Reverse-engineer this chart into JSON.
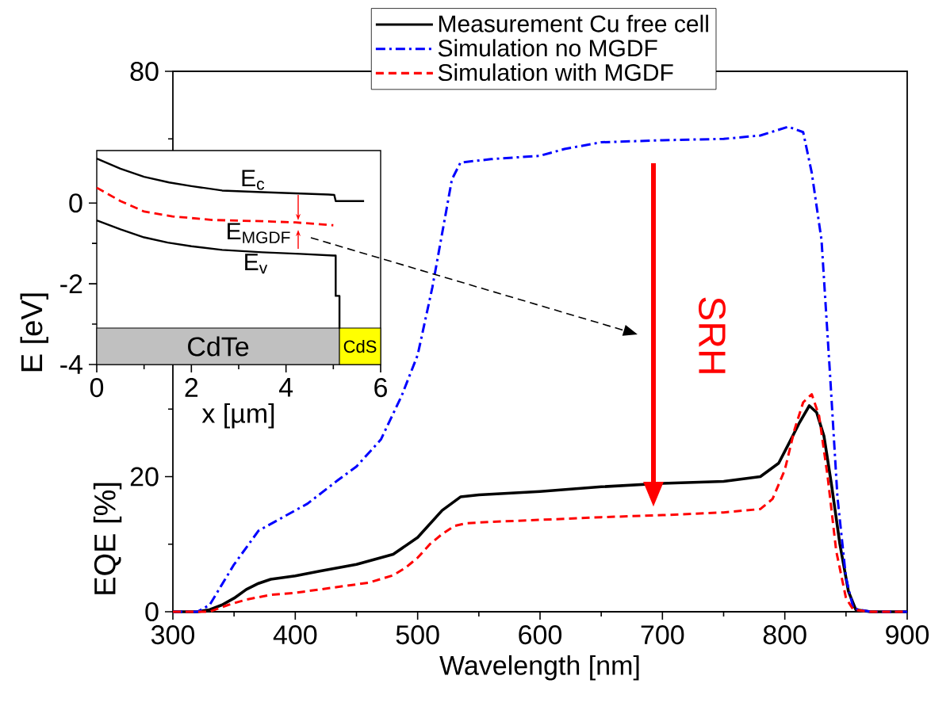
{
  "chart_data": [
    {
      "type": "line",
      "xlabel": "Wavelength [nm]",
      "ylabel": "EQE [%]",
      "xlim": [
        300,
        900
      ],
      "ylim": [
        0,
        80
      ],
      "xticks": [
        300,
        400,
        500,
        600,
        700,
        800,
        900
      ],
      "yticks": [
        0,
        20,
        {
          "value": 40,
          "label": null
        },
        {
          "value": 60,
          "label": null
        },
        80
      ],
      "legend": "top",
      "marker": "none",
      "annotations": [
        "SRH"
      ],
      "series": [
        {
          "name": "Measurement Cu free cell",
          "color": "#000000",
          "line_style": "solid",
          "x": [
            300,
            320,
            330,
            340,
            350,
            360,
            370,
            380,
            400,
            420,
            450,
            480,
            500,
            520,
            535,
            550,
            600,
            650,
            700,
            750,
            780,
            795,
            805,
            812,
            820,
            826,
            832,
            838,
            845,
            852,
            858,
            870,
            900
          ],
          "values": [
            0,
            0,
            0.3,
            1,
            2,
            3.3,
            4.2,
            4.8,
            5.3,
            6,
            7,
            8.5,
            11,
            15,
            17,
            17.3,
            17.8,
            18.5,
            19,
            19.3,
            20,
            22,
            25.5,
            28,
            30.5,
            29.5,
            26,
            19,
            10,
            3,
            0.3,
            0,
            0
          ]
        },
        {
          "name": "Simulation no MGDF",
          "color": "#0000ff",
          "line_style": "dashdot",
          "x": [
            300,
            320,
            330,
            340,
            350,
            360,
            370,
            390,
            410,
            435,
            450,
            470,
            487,
            500,
            512,
            520,
            528,
            535,
            560,
            600,
            620,
            650,
            700,
            750,
            780,
            803,
            815,
            822,
            830,
            837,
            843,
            850,
            856,
            870,
            900
          ],
          "values": [
            0,
            0,
            1,
            4,
            7,
            9.5,
            12,
            14,
            16,
            19.5,
            21.5,
            25.5,
            32,
            38,
            48,
            56,
            64,
            66.5,
            67,
            67.5,
            68.5,
            69.5,
            69.8,
            70,
            70.5,
            71.8,
            71,
            65,
            55,
            35,
            17,
            5,
            0.5,
            0,
            0
          ]
        },
        {
          "name": "Simulation with MGDF",
          "color": "#ff0000",
          "line_style": "dashed",
          "x": [
            300,
            330,
            345,
            360,
            380,
            400,
            420,
            440,
            460,
            480,
            490,
            500,
            510,
            520,
            530,
            540,
            560,
            600,
            650,
            700,
            750,
            780,
            790,
            800,
            808,
            815,
            822,
            828,
            835,
            842,
            850,
            856,
            870,
            900
          ],
          "values": [
            0,
            0,
            1,
            1.8,
            2.5,
            2.8,
            3.3,
            3.8,
            4.3,
            5.4,
            6.5,
            8,
            10,
            11.5,
            12.7,
            13.1,
            13.3,
            13.6,
            14,
            14.3,
            14.7,
            15.2,
            16.7,
            21,
            27,
            31,
            32.2,
            29,
            20,
            9,
            2,
            0.3,
            0,
            0
          ]
        }
      ]
    },
    {
      "type": "line",
      "xlabel": "x [µm]",
      "ylabel": "E [eV]",
      "xlim": [
        0,
        6
      ],
      "ylim": [
        -4,
        1.3
      ],
      "xticks": [
        0,
        2,
        4,
        6
      ],
      "yticks": [
        -4,
        -2,
        0
      ],
      "marker": "none",
      "bands": [
        {
          "axis": "x",
          "from": 0,
          "to": 5.13,
          "label": "CdTe",
          "color": "#c0c0c0"
        },
        {
          "axis": "x",
          "from": 5.13,
          "to": 6,
          "label": "CdS",
          "color": "#ffff00"
        }
      ],
      "series": [
        {
          "name": "E$_{c}$",
          "color": "#000000",
          "line_style": "solid",
          "x": [
            0,
            0.5,
            1,
            1.53,
            2,
            2.65,
            3.5,
            4.2,
            4.9,
            5.02,
            5.05,
            5.3,
            5.65
          ],
          "values": [
            1.1,
            0.85,
            0.65,
            0.51,
            0.42,
            0.31,
            0.27,
            0.24,
            0.21,
            0.2,
            0.05,
            0.05,
            0.05
          ]
        },
        {
          "name": "E$_{MGDF}$",
          "color": "#ff0000",
          "line_style": "dashed",
          "x": [
            0,
            0.5,
            1,
            1.6,
            2.45,
            3.5,
            4.2,
            5.0
          ],
          "values": [
            0.38,
            0.05,
            -0.21,
            -0.33,
            -0.42,
            -0.45,
            -0.48,
            -0.55
          ]
        },
        {
          "name": "E$_{v}$",
          "color": "#000000",
          "line_style": "solid",
          "x": [
            0,
            0.5,
            1,
            1.5,
            2,
            2.65,
            3.5,
            4.3,
            5.0,
            5.05,
            5.05,
            5.13,
            5.13
          ],
          "values": [
            -0.43,
            -0.65,
            -0.85,
            -0.98,
            -1.07,
            -1.16,
            -1.22,
            -1.26,
            -1.3,
            -1.3,
            -2.3,
            -2.3,
            -3.11
          ]
        }
      ]
    }
  ]
}
